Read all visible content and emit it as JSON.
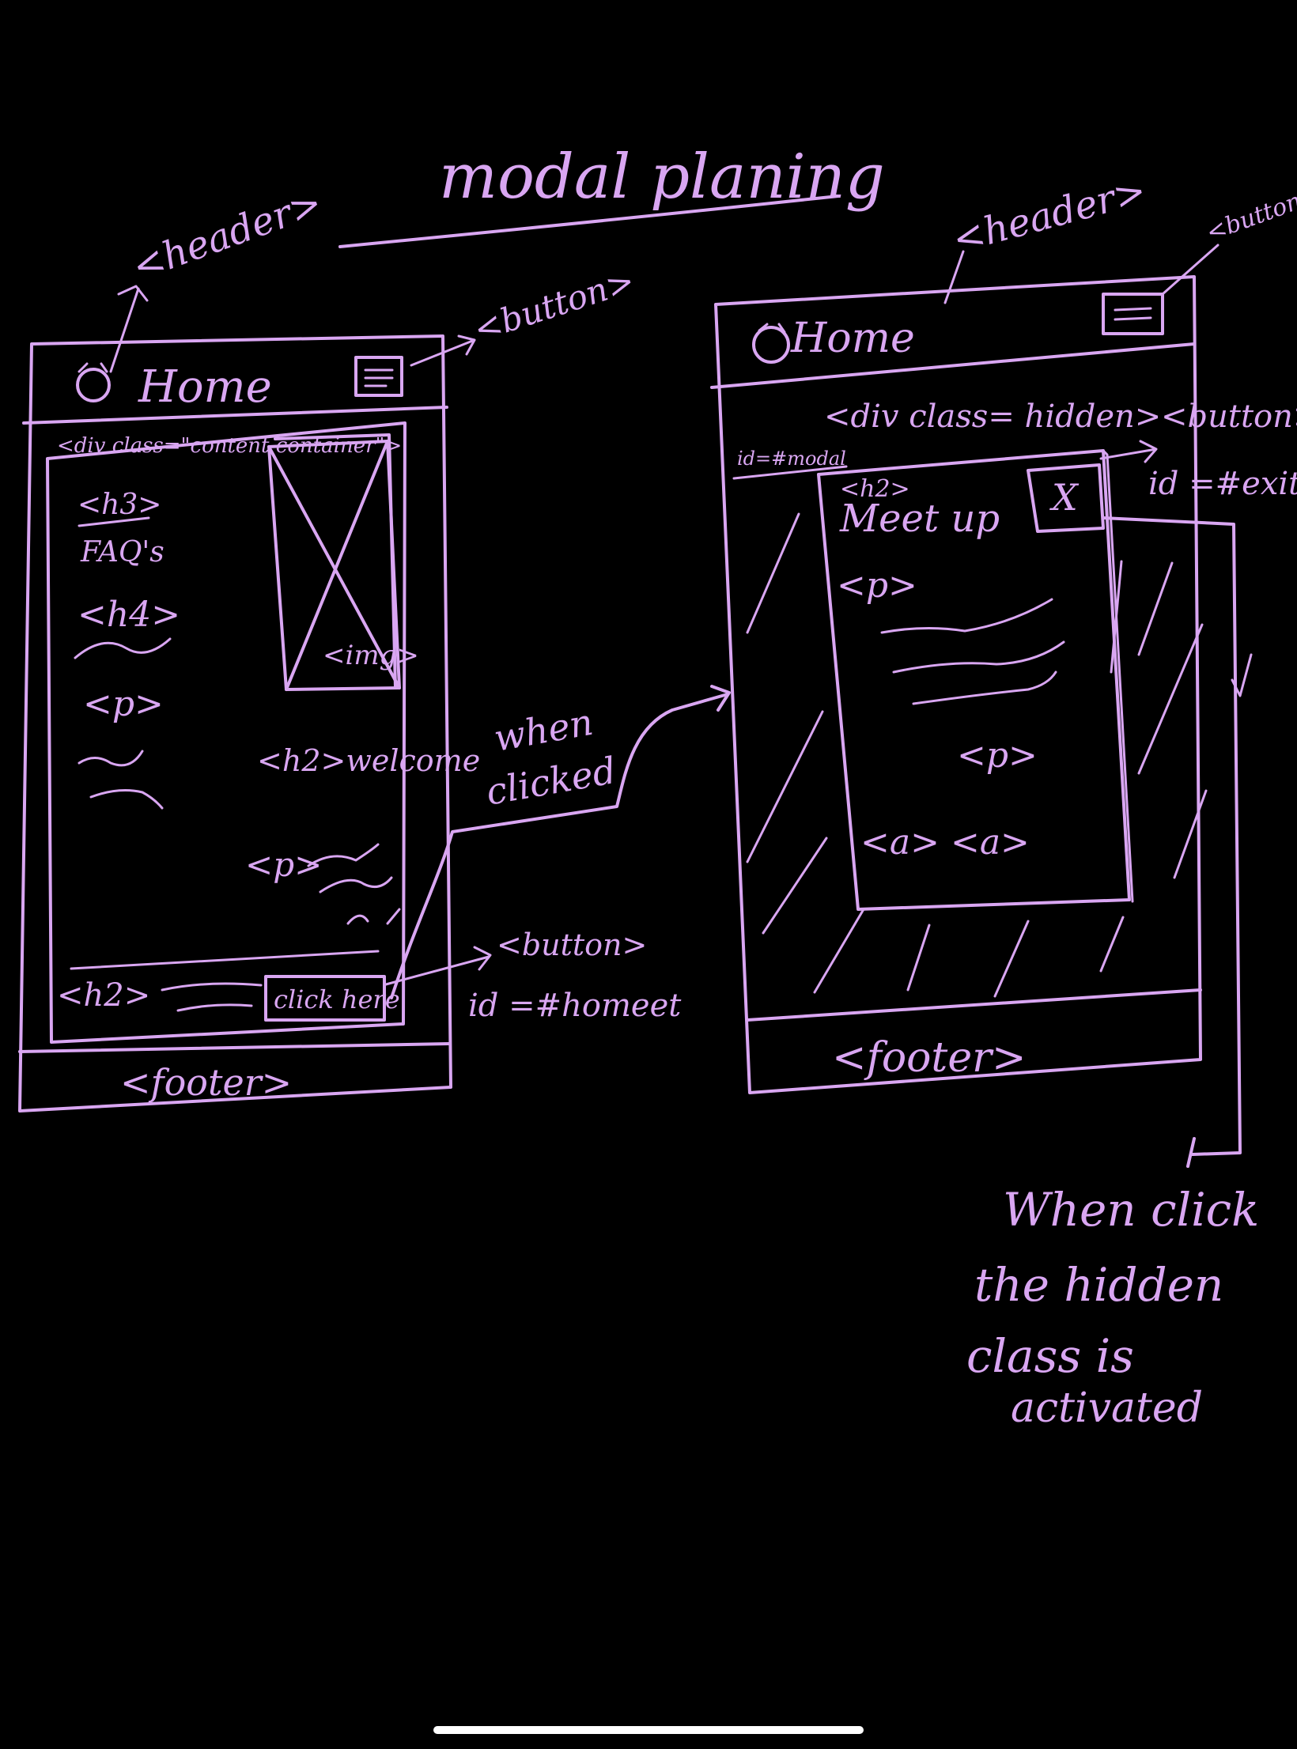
{
  "title": "modal planing",
  "left_wireframe": {
    "header_label": "<header>",
    "header_home": "Home",
    "button_label": "<button>",
    "container_label": "<div class=\"content container\">",
    "h3_tag": "<h3>",
    "h3_text": "FAQ's",
    "h4_tag": "<h4>",
    "p_tag": "<p>",
    "img_label": "<img>",
    "h2_welcome": "<h2>welcome",
    "p_tag_2": "<p>",
    "h2_tag": "<h2>",
    "click_button": "click here",
    "button_label_2": "<button>",
    "button_id": "id =#homeet",
    "footer_label": "<footer>"
  },
  "arrow_label": "when clicked",
  "right_wireframe": {
    "header_label": "<header>",
    "header_home": "Home",
    "button_label": "<button>",
    "hidden_div": "<div class= hidden>",
    "modal_id": "id=#modal",
    "h2_tag": "<h2>",
    "h2_text": "Meet up",
    "close_x": "X",
    "exit_button": "<button>",
    "exit_id": "id =#exit",
    "p_tag": "<p>",
    "p_tag_2": "<p>",
    "a_tags": "<a> <a>",
    "footer_label": "<footer>"
  },
  "note": {
    "line1": "When click",
    "line2": "the hidden",
    "line3": "class is",
    "line4": "activated"
  },
  "ink_color": "#d9a6f2"
}
